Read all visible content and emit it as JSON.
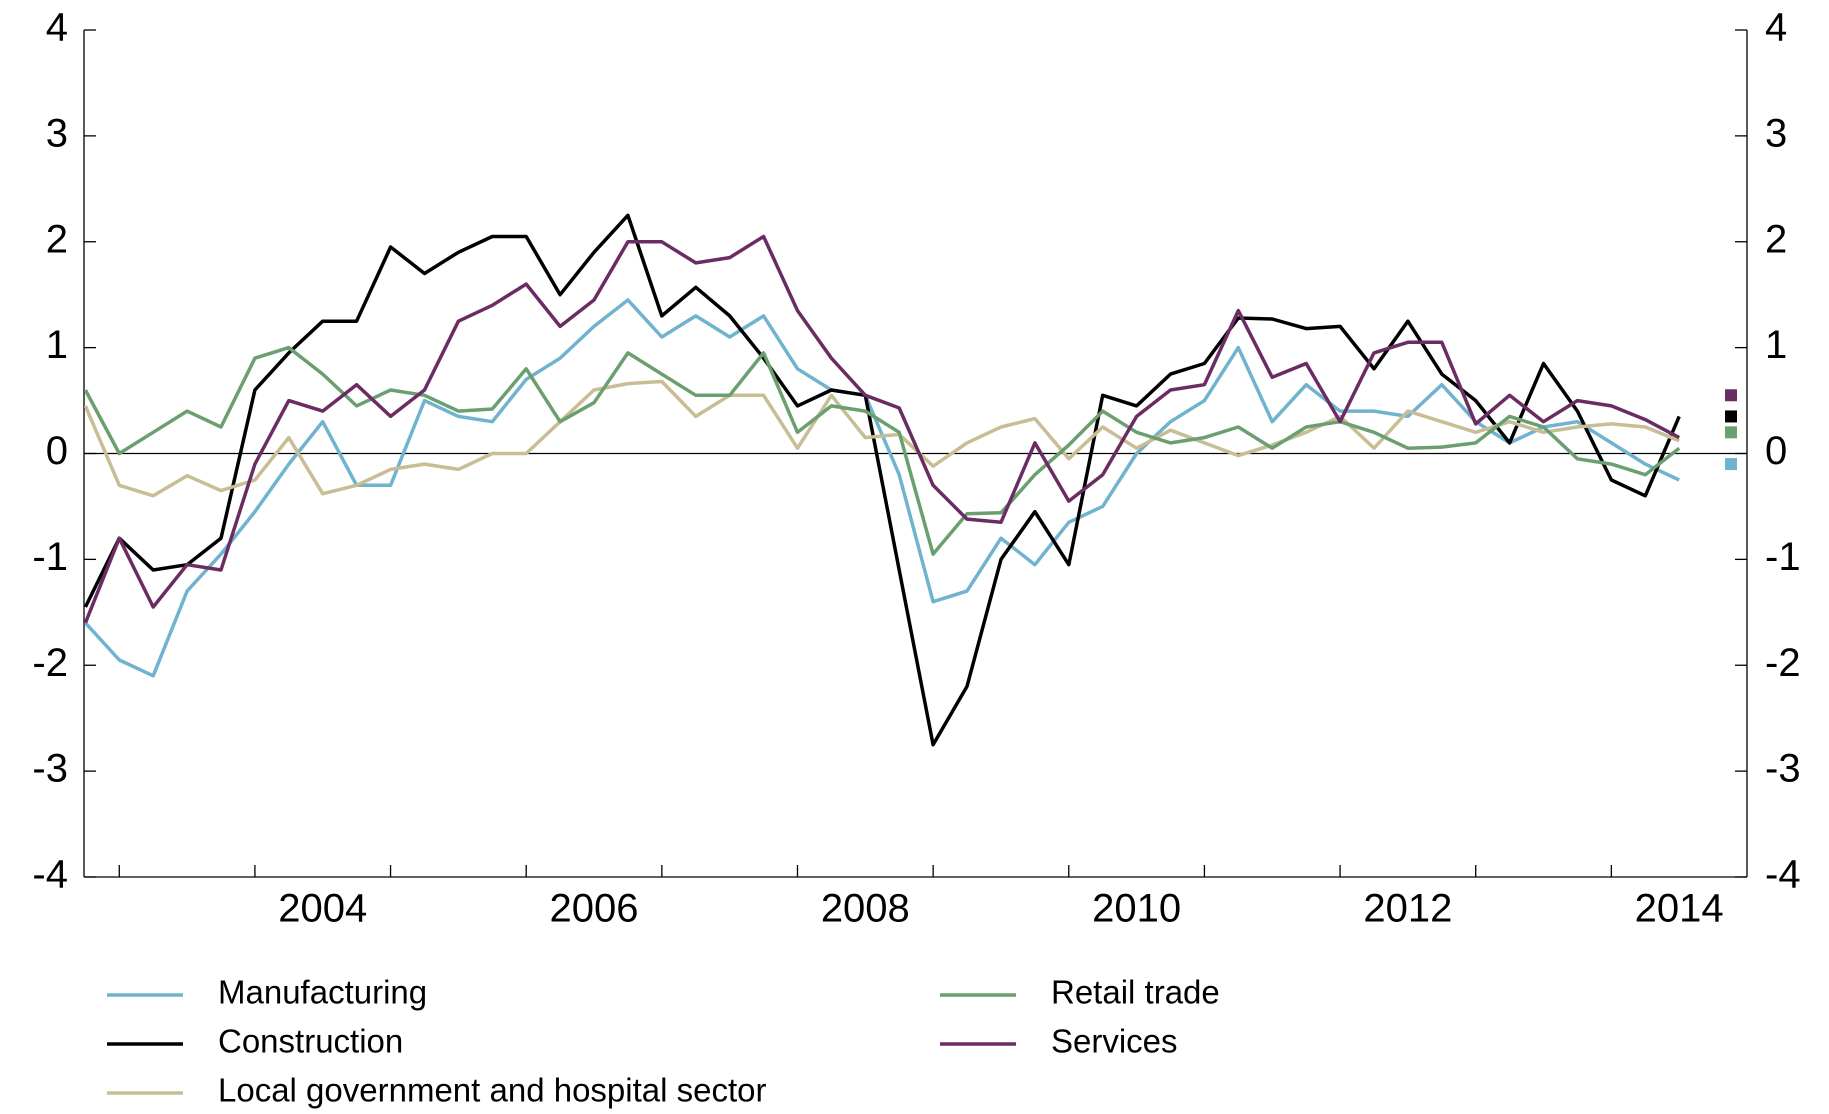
{
  "chart_data": {
    "type": "line",
    "x": [
      2002.75,
      2003,
      2003.25,
      2003.5,
      2003.75,
      2004,
      2004.25,
      2004.5,
      2004.75,
      2005,
      2005.25,
      2005.5,
      2005.75,
      2006,
      2006.25,
      2006.5,
      2006.75,
      2007,
      2007.25,
      2007.5,
      2007.75,
      2008,
      2008.25,
      2008.5,
      2008.75,
      2009,
      2009.25,
      2009.5,
      2009.75,
      2010,
      2010.25,
      2010.5,
      2010.75,
      2011,
      2011.25,
      2011.5,
      2011.75,
      2012,
      2012.25,
      2012.5,
      2012.75,
      2013,
      2013.25,
      2013.5,
      2013.75,
      2014,
      2014.25,
      2014.5
    ],
    "xlim": [
      2002.74,
      2015
    ],
    "xticks": [
      {
        "value": 2003,
        "label": null
      },
      2004,
      {
        "value": 2005,
        "label": null
      },
      2006,
      {
        "value": 2007,
        "label": null
      },
      2008,
      {
        "value": 2009,
        "label": null
      },
      2010,
      {
        "value": 2011,
        "label": null
      },
      2012,
      {
        "value": 2013,
        "label": null
      },
      2014
    ],
    "ylim": [
      -4,
      4
    ],
    "yticks": [
      -4,
      -3,
      -2,
      -1,
      0,
      1,
      2,
      3,
      4
    ],
    "y2lim": [
      -4,
      4
    ],
    "y2ticks": [
      -4,
      -3,
      -2,
      -1,
      0,
      1,
      2,
      3,
      4
    ],
    "series": [
      {
        "name": "Manufacturing",
        "color": "#6fb3cf",
        "marker": -0.1,
        "values": [
          -1.6,
          -1.95,
          -2.1,
          -1.3,
          -0.95,
          -0.55,
          -0.1,
          0.3,
          -0.3,
          -0.3,
          0.5,
          0.35,
          0.3,
          0.7,
          0.9,
          1.2,
          1.45,
          1.1,
          1.3,
          1.1,
          1.3,
          0.8,
          0.6,
          0.55,
          -0.2,
          -1.4,
          -1.3,
          -0.8,
          -1.05,
          -0.65,
          -0.5,
          0.0,
          0.3,
          0.5,
          1.0,
          0.3,
          0.65,
          0.4,
          0.4,
          0.35,
          0.65,
          0.3,
          0.1,
          0.25,
          0.3,
          0.1,
          -0.1,
          -0.25
        ]
      },
      {
        "name": "Construction",
        "color": "#000000",
        "marker": 0.35,
        "values": [
          -1.45,
          -0.8,
          -1.1,
          -1.05,
          -0.8,
          0.6,
          0.95,
          1.25,
          1.25,
          1.95,
          1.7,
          1.9,
          2.05,
          2.05,
          1.5,
          1.9,
          2.25,
          1.3,
          1.57,
          1.3,
          0.9,
          0.45,
          0.6,
          0.55,
          -1.1,
          -2.75,
          -2.2,
          -1.0,
          -0.55,
          -1.05,
          0.55,
          0.45,
          0.75,
          0.85,
          1.28,
          1.27,
          1.18,
          1.2,
          0.8,
          1.25,
          0.75,
          0.5,
          0.1,
          0.85,
          0.4,
          -0.25,
          -0.4,
          0.35
        ]
      },
      {
        "name": "Local government and hospital sector",
        "color": "#c8bd94",
        "values": [
          0.45,
          -0.3,
          -0.4,
          -0.21,
          -0.35,
          -0.25,
          0.15,
          -0.38,
          -0.3,
          -0.15,
          -0.1,
          -0.15,
          0.0,
          0.0,
          0.3,
          0.6,
          0.66,
          0.68,
          0.35,
          0.55,
          0.55,
          0.05,
          0.55,
          0.15,
          0.18,
          -0.12,
          0.1,
          0.25,
          0.33,
          -0.05,
          0.25,
          0.05,
          0.22,
          0.1,
          -0.02,
          0.08,
          0.2,
          0.35,
          0.05,
          0.4,
          0.3,
          0.2,
          0.3,
          0.2,
          0.25,
          0.28,
          0.25,
          0.12
        ]
      },
      {
        "name": "Retail trade",
        "color": "#6c9f70",
        "marker": 0.2,
        "values": [
          0.6,
          0.0,
          0.2,
          0.4,
          0.25,
          0.9,
          1.0,
          0.75,
          0.45,
          0.6,
          0.55,
          0.4,
          0.42,
          0.8,
          0.3,
          0.48,
          0.95,
          0.75,
          0.55,
          0.55,
          0.95,
          0.2,
          0.45,
          0.4,
          0.2,
          -0.95,
          -0.57,
          -0.56,
          -0.2,
          0.08,
          0.4,
          0.2,
          0.1,
          0.15,
          0.25,
          0.05,
          0.25,
          0.3,
          0.2,
          0.05,
          0.06,
          0.1,
          0.35,
          0.25,
          -0.05,
          -0.1,
          -0.2,
          0.05
        ]
      },
      {
        "name": "Services",
        "color": "#6b2c63",
        "marker": 0.55,
        "values": [
          -1.6,
          -0.8,
          -1.45,
          -1.05,
          -1.1,
          -0.1,
          0.5,
          0.4,
          0.65,
          0.35,
          0.6,
          1.25,
          1.4,
          1.6,
          1.2,
          1.45,
          2.0,
          2.0,
          1.8,
          1.85,
          2.05,
          1.35,
          0.9,
          0.55,
          0.43,
          -0.3,
          -0.62,
          -0.65,
          0.1,
          -0.45,
          -0.2,
          0.35,
          0.6,
          0.65,
          1.35,
          0.72,
          0.85,
          0.3,
          0.95,
          1.05,
          1.05,
          0.28,
          0.55,
          0.3,
          0.5,
          0.45,
          0.32,
          0.15
        ]
      }
    ]
  }
}
